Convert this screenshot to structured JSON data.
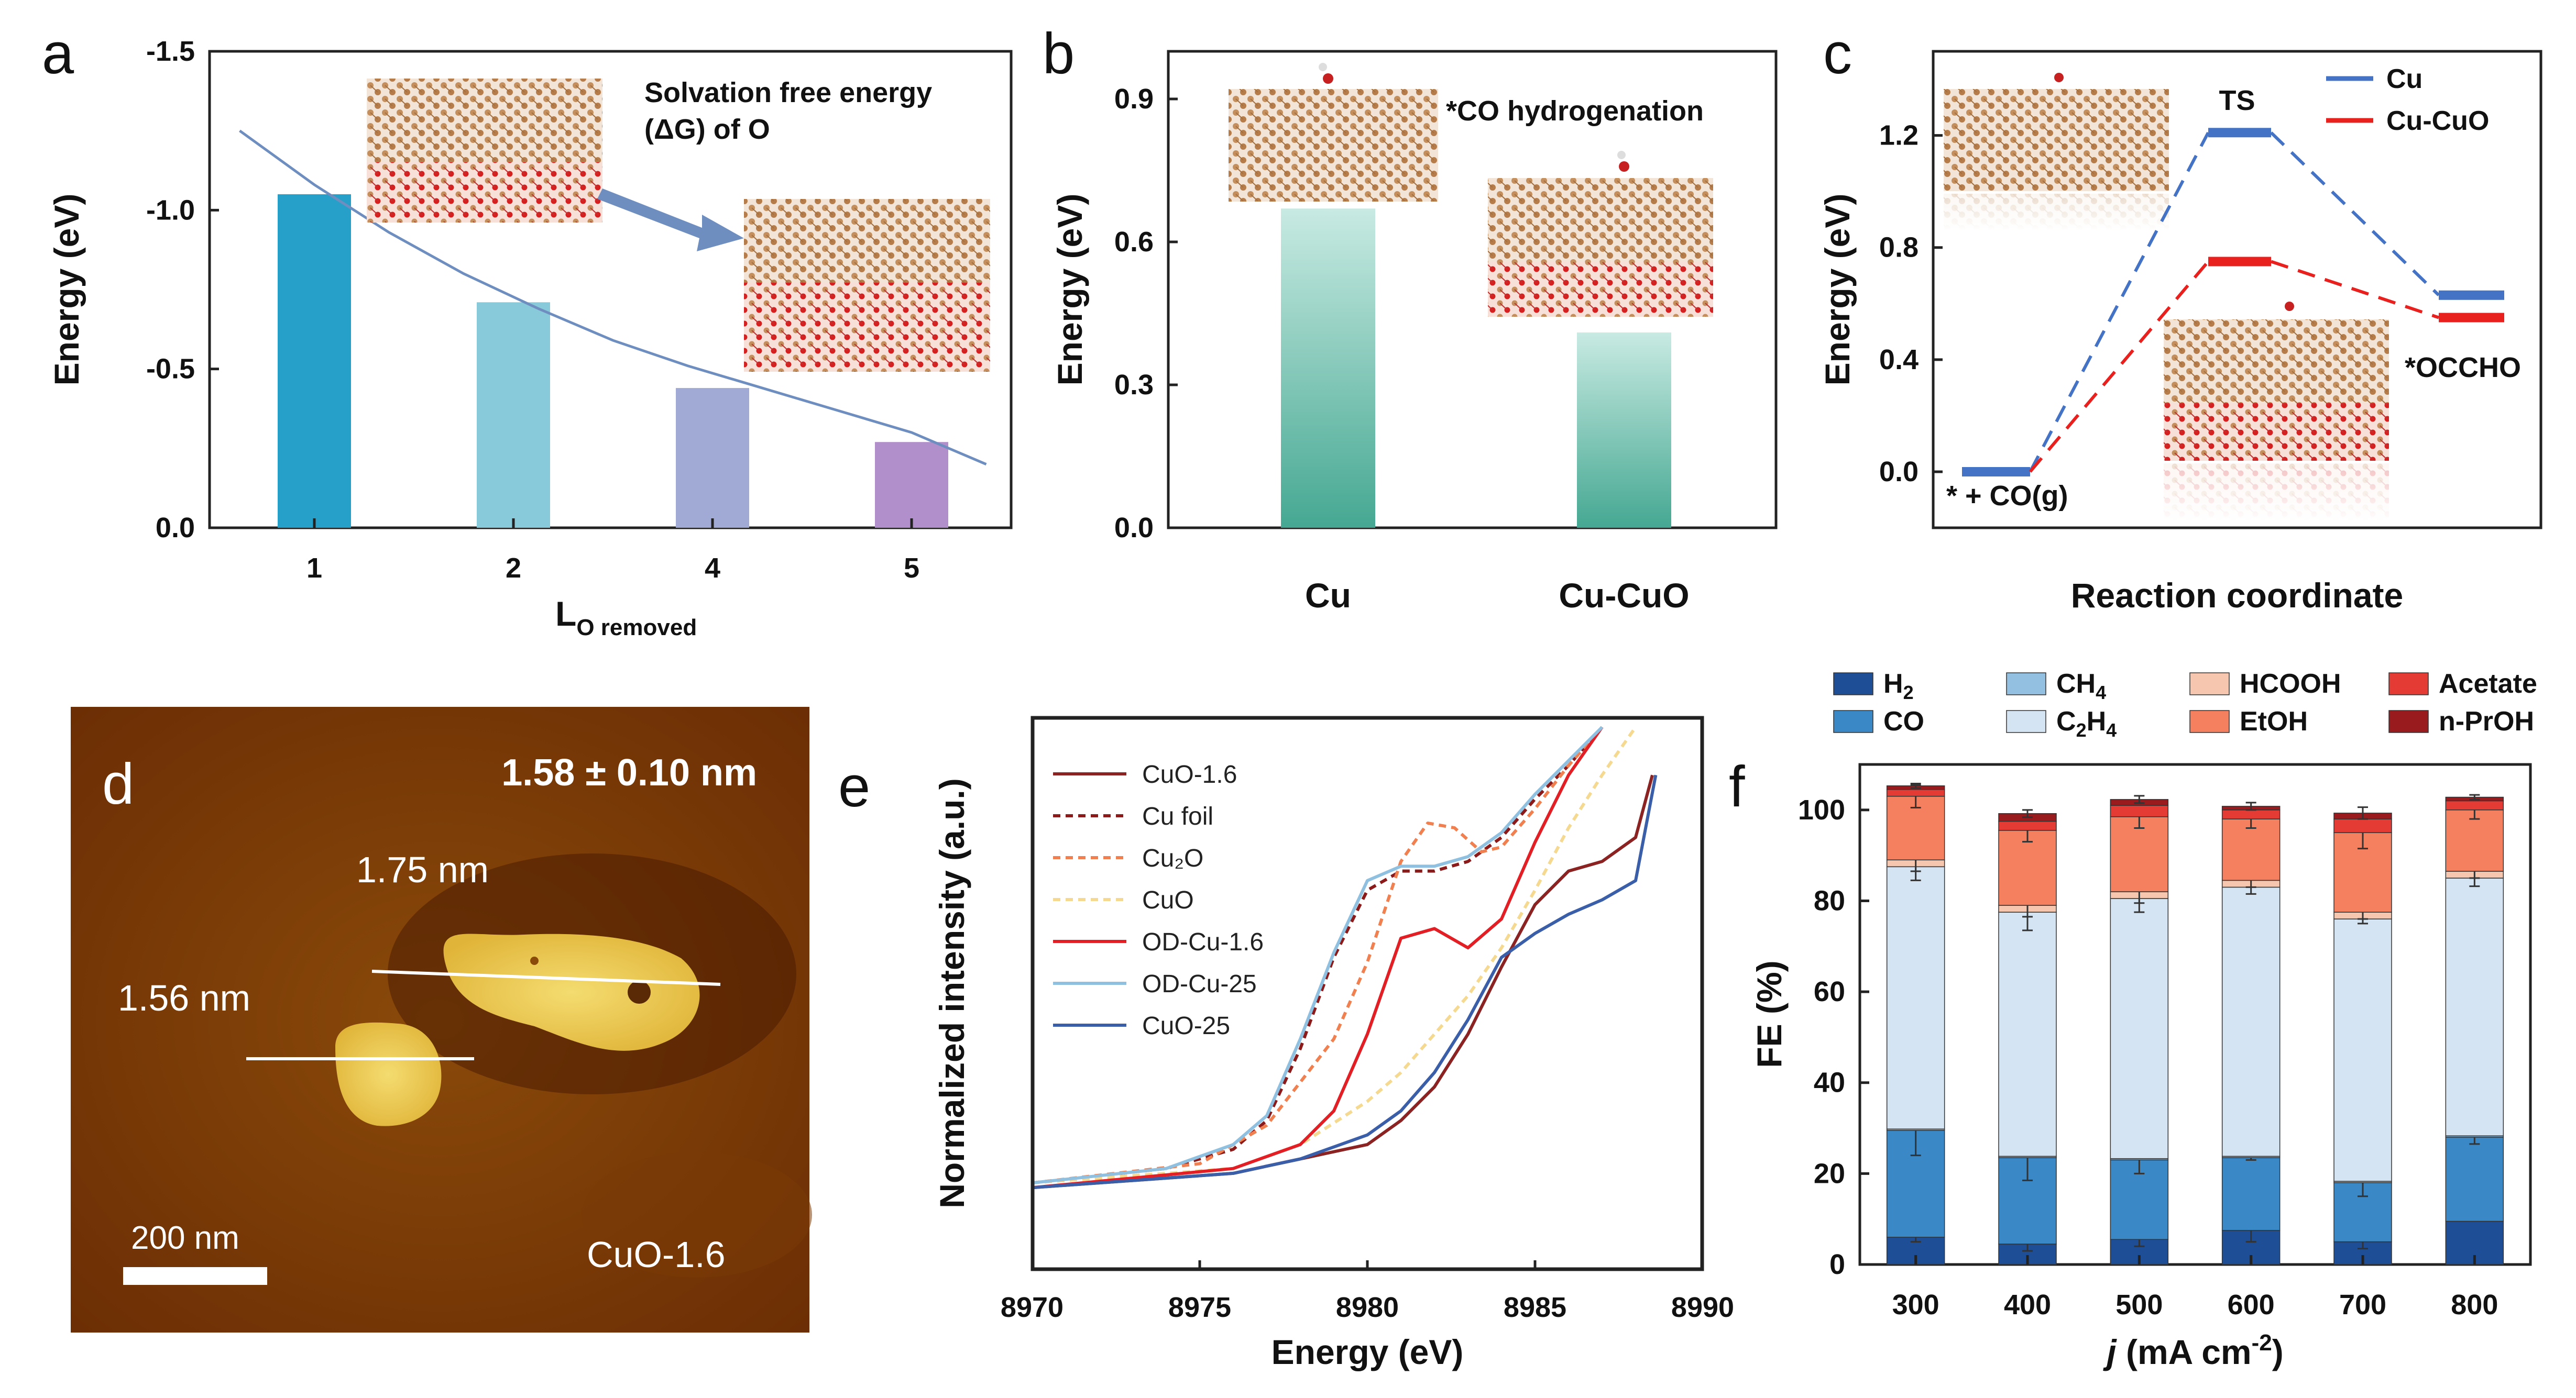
{
  "panels": {
    "a": "a",
    "b": "b",
    "c": "c",
    "d": "d",
    "e": "e",
    "f": "f"
  },
  "chart_data": [
    {
      "panel": "a",
      "type": "bar",
      "categories": [
        "1",
        "2",
        "4",
        "5"
      ],
      "values": [
        -1.05,
        -0.71,
        -0.44,
        -0.27
      ],
      "colors": [
        "#26a0c9",
        "#88c9da",
        "#a0aad4",
        "#b08fca"
      ],
      "ylim": [
        0,
        -1.5
      ],
      "yticks": [
        "-1.5",
        "-1.0",
        "-0.5",
        "0.0"
      ],
      "ylabel": "Energy (eV)",
      "xlabel_main": "L",
      "xlabel_sub": "O removed",
      "fit_curve_x": [
        0.5,
        1,
        1.5,
        2,
        2.5,
        3,
        3.5,
        4,
        4.5,
        5,
        5.5
      ],
      "fit_curve_y": [
        -1.25,
        -1.08,
        -0.93,
        -0.8,
        -0.69,
        -0.59,
        -0.51,
        -0.44,
        -0.37,
        -0.3,
        -0.2
      ],
      "annotation": [
        "Solvation free energy",
        "(ΔG) of O"
      ]
    },
    {
      "panel": "b",
      "type": "bar",
      "categories": [
        "Cu",
        "Cu-CuO"
      ],
      "values": [
        0.67,
        0.41
      ],
      "ylim": [
        0,
        1.0
      ],
      "yticks": [
        "0.0",
        "0.3",
        "0.6",
        "0.9"
      ],
      "ylabel": "Energy (eV)",
      "annotation": "*CO hydrogenation",
      "bar_colors": [
        "#45a892",
        "#c8eae2"
      ]
    },
    {
      "panel": "c",
      "type": "line",
      "series": [
        {
          "name": "Cu",
          "color": "#4472c4",
          "levels": [
            0.0,
            1.21,
            0.63
          ]
        },
        {
          "name": "Cu-CuO",
          "color": "#e8201e",
          "levels": [
            0.0,
            0.75,
            0.55
          ]
        }
      ],
      "ylim": [
        -0.2,
        1.5
      ],
      "yticks": [
        "0.0",
        "0.4",
        "0.8",
        "1.2"
      ],
      "ylabel": "Energy (eV)",
      "xlabel": "Reaction coordinate",
      "state_labels": {
        "start": "* + CO(g)",
        "ts": "TS",
        "end": "*OCCHO"
      }
    },
    {
      "panel": "e",
      "type": "line",
      "xlim": [
        8970,
        8990
      ],
      "xticks": [
        "8970",
        "8975",
        "8980",
        "8985",
        "8990"
      ],
      "xlabel": "Energy (eV)",
      "ylabel": "Normalized intensity (a.u.)",
      "series": [
        {
          "name": "CuO-1.6",
          "color": "#8b2323",
          "dash": "none",
          "x": [
            8970,
            8976,
            8978,
            8980,
            8981,
            8982,
            8983,
            8984,
            8985,
            8986,
            8987,
            8988,
            8988.5
          ],
          "y": [
            0.04,
            0.07,
            0.1,
            0.13,
            0.18,
            0.25,
            0.36,
            0.5,
            0.63,
            0.7,
            0.72,
            0.77,
            0.9
          ]
        },
        {
          "name": "Cu foil",
          "color": "#8b1a1a",
          "dash": "14,10",
          "x": [
            8970,
            8974,
            8976,
            8977,
            8978,
            8979,
            8980,
            8981,
            8982,
            8983,
            8984,
            8985,
            8986,
            8987
          ],
          "y": [
            0.05,
            0.08,
            0.12,
            0.18,
            0.33,
            0.52,
            0.66,
            0.7,
            0.7,
            0.72,
            0.77,
            0.85,
            0.92,
            1.0
          ]
        },
        {
          "name": "Cu₂O",
          "color": "#f08050",
          "dash": "14,10",
          "x": [
            8970,
            8975,
            8977,
            8978,
            8979,
            8980,
            8981,
            8981.8,
            8982.6,
            8983.4,
            8984,
            8985,
            8986,
            8987
          ],
          "y": [
            0.05,
            0.09,
            0.17,
            0.26,
            0.35,
            0.51,
            0.72,
            0.8,
            0.79,
            0.74,
            0.75,
            0.83,
            0.92,
            1.0
          ]
        },
        {
          "name": "CuO",
          "color": "#f5d990",
          "dash": "14,10",
          "x": [
            8970,
            8976,
            8978,
            8980,
            8981,
            8982,
            8983,
            8984,
            8985,
            8986,
            8987,
            8988
          ],
          "y": [
            0.05,
            0.08,
            0.13,
            0.22,
            0.28,
            0.36,
            0.44,
            0.54,
            0.66,
            0.79,
            0.9,
            1.0
          ]
        },
        {
          "name": "OD-Cu-1.6",
          "color": "#e21f24",
          "dash": "none",
          "x": [
            8970,
            8976,
            8978,
            8979,
            8980,
            8981,
            8982,
            8983,
            8984,
            8985,
            8986,
            8987
          ],
          "y": [
            0.04,
            0.08,
            0.13,
            0.2,
            0.36,
            0.56,
            0.58,
            0.54,
            0.6,
            0.76,
            0.9,
            1.0
          ]
        },
        {
          "name": "OD-Cu-25",
          "color": "#8fc0e0",
          "dash": "none",
          "x": [
            8970,
            8974,
            8976,
            8977,
            8978,
            8979,
            8980,
            8981,
            8982,
            8983,
            8984,
            8985,
            8986,
            8987
          ],
          "y": [
            0.05,
            0.08,
            0.13,
            0.19,
            0.35,
            0.53,
            0.68,
            0.71,
            0.71,
            0.73,
            0.78,
            0.86,
            0.93,
            1.0
          ]
        },
        {
          "name": "CuO-25",
          "color": "#3a5fa8",
          "dash": "none",
          "x": [
            8970,
            8976,
            8978,
            8980,
            8981,
            8982,
            8983,
            8984,
            8985,
            8986,
            8987,
            8988,
            8988.6
          ],
          "y": [
            0.04,
            0.07,
            0.1,
            0.15,
            0.2,
            0.28,
            0.39,
            0.52,
            0.57,
            0.61,
            0.64,
            0.68,
            0.9
          ]
        }
      ]
    },
    {
      "panel": "f",
      "type": "bar",
      "stacked": true,
      "categories": [
        "300",
        "400",
        "500",
        "600",
        "700",
        "800"
      ],
      "ylim": [
        0,
        110
      ],
      "yticks": [
        "0",
        "20",
        "40",
        "60",
        "80",
        "100"
      ],
      "ylabel": "FE (%)",
      "xlabel_italic": "j",
      "xlabel_main": " (mA cm",
      "xlabel_sup": "-2",
      "xlabel_end": ")",
      "series": [
        {
          "name": "H2",
          "label_main": "H",
          "label_sub": "2",
          "color": "#1e4f96",
          "values": [
            6,
            4.5,
            5.5,
            7.5,
            5,
            9.5
          ],
          "err": [
            1,
            1.5,
            1.5,
            2.5,
            1.5,
            0
          ]
        },
        {
          "name": "CO",
          "label_main": "CO",
          "label_sub": "",
          "color": "#3a88c6",
          "values": [
            23.5,
            19,
            17.5,
            16,
            13,
            18.5
          ],
          "err": [
            5.5,
            5,
            3,
            0.5,
            3,
            1.5
          ]
        },
        {
          "name": "CH4",
          "label_main": "CH",
          "label_sub": "4",
          "color": "#93bfe0",
          "values": [
            0.3,
            0.3,
            0.3,
            0.3,
            0.3,
            0.3
          ],
          "err": [
            0,
            0,
            0,
            0,
            0,
            0
          ]
        },
        {
          "name": "C2H4",
          "label_main": "C",
          "label_sub": "2",
          "label_after": "H",
          "label_sub2": "4",
          "color": "#d5e4f3",
          "values": [
            57.7,
            53.7,
            57.2,
            59.2,
            57.7,
            56.7
          ],
          "err": [
            3,
            4,
            3,
            1.5,
            1,
            1.8
          ]
        },
        {
          "name": "HCOOH",
          "label_main": "HCOOH",
          "label_sub": "",
          "color": "#f7c6ae",
          "values": [
            1.5,
            1.5,
            1.5,
            1.5,
            1.5,
            1.5
          ],
          "err": [
            2.5,
            2.5,
            2.5,
            1.5,
            1.5,
            1.5
          ]
        },
        {
          "name": "EtOH",
          "label_main": "EtOH",
          "label_sub": "",
          "color": "#f5805f",
          "values": [
            14,
            16.5,
            16.5,
            13.5,
            17.5,
            13.5
          ],
          "err": [
            2.5,
            2.5,
            2.5,
            2,
            3.5,
            2
          ]
        },
        {
          "name": "Acetate",
          "label_main": "Acetate",
          "label_sub": "",
          "color": "#e53b35",
          "values": [
            1.5,
            2,
            2.5,
            2,
            3,
            2
          ],
          "err": [
            0,
            0,
            0,
            0,
            0,
            0
          ]
        },
        {
          "name": "n-PrOH",
          "label_main": "n-PrOH",
          "label_sub": "",
          "color": "#9a1b1e",
          "values": [
            0.8,
            1.7,
            1.3,
            0.8,
            1.3,
            0.8
          ],
          "err": [
            0.5,
            0.8,
            0.8,
            0.8,
            1.3,
            0.5
          ]
        }
      ]
    }
  ],
  "afm": {
    "title": "1.58 ± 0.10 nm",
    "label_upper": "1.75 nm",
    "label_lower": "1.56 nm",
    "scale_bar": "200 nm",
    "sample": "CuO-1.6"
  }
}
